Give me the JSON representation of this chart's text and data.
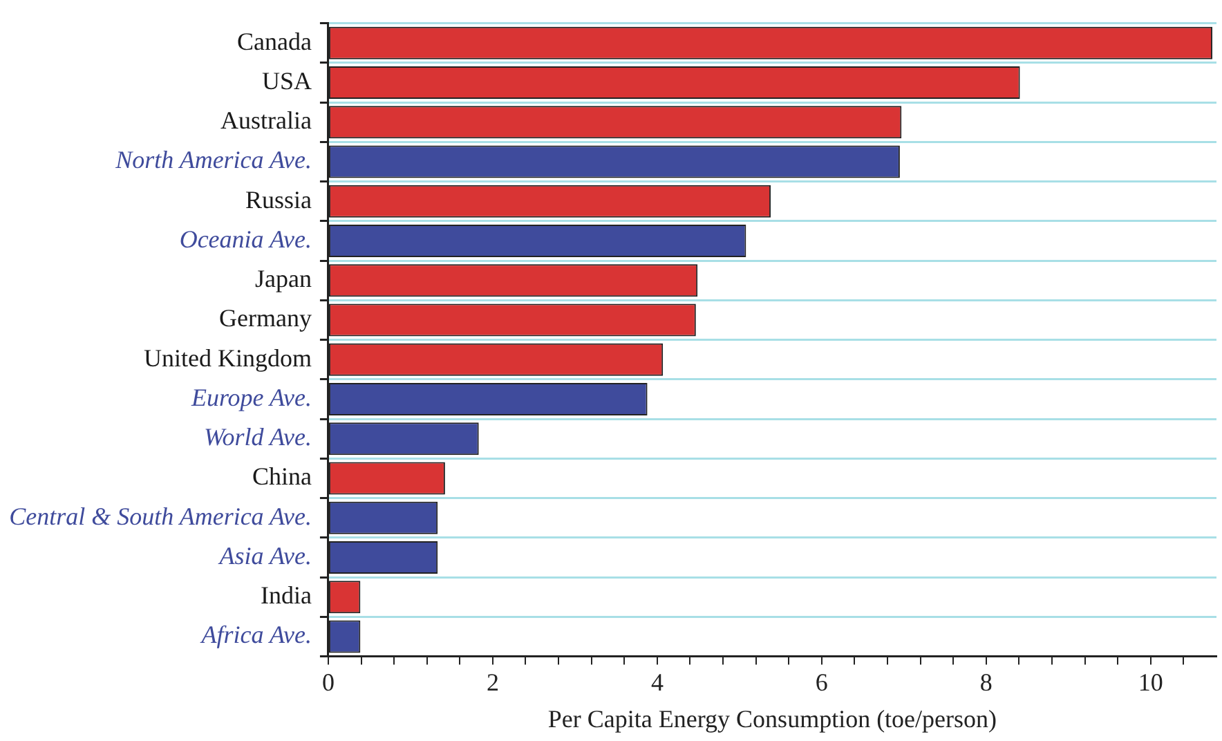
{
  "chart_data": {
    "type": "bar",
    "orientation": "horizontal",
    "xlabel": "Per Capita Energy Consumption (toe/person)",
    "categories": [
      "Canada",
      "USA",
      "Australia",
      "North America Ave.",
      "Russia",
      "Oceania Ave.",
      "Japan",
      "Germany",
      "United Kingdom",
      "Europe Ave.",
      "World Ave.",
      "China",
      "Central & South America Ave.",
      "Asia Ave.",
      "India",
      "Africa Ave."
    ],
    "values": [
      10.75,
      8.41,
      6.97,
      6.95,
      5.38,
      5.08,
      4.49,
      4.47,
      4.07,
      3.88,
      1.83,
      1.42,
      1.33,
      1.33,
      0.39,
      0.39
    ],
    "colors": [
      "#d93434",
      "#d93434",
      "#d93434",
      "#3f4b9c",
      "#d93434",
      "#3f4b9c",
      "#d93434",
      "#d93434",
      "#d93434",
      "#3f4b9c",
      "#3f4b9c",
      "#d93434",
      "#3f4b9c",
      "#3f4b9c",
      "#d93434",
      "#3f4b9c"
    ],
    "xlim": [
      0,
      10.8
    ],
    "xticks": [
      0,
      {
        "value": 0.4,
        "label": null
      },
      {
        "value": 0.8,
        "label": null
      },
      {
        "value": 1.2,
        "label": null
      },
      {
        "value": 1.6,
        "label": null
      },
      2,
      {
        "value": 2.4,
        "label": null
      },
      {
        "value": 2.8,
        "label": null
      },
      {
        "value": 3.2,
        "label": null
      },
      {
        "value": 3.6,
        "label": null
      },
      4,
      {
        "value": 4.4,
        "label": null
      },
      {
        "value": 4.8,
        "label": null
      },
      {
        "value": 5.2,
        "label": null
      },
      {
        "value": 5.6,
        "label": null
      },
      6,
      {
        "value": 6.4,
        "label": null
      },
      {
        "value": 6.8,
        "label": null
      },
      {
        "value": 7.2,
        "label": null
      },
      {
        "value": 7.6,
        "label": null
      },
      8,
      {
        "value": 8.4,
        "label": null
      },
      {
        "value": 8.8,
        "label": null
      },
      {
        "value": 9.2,
        "label": null
      },
      {
        "value": 9.6,
        "label": null
      },
      10,
      {
        "value": 10.4,
        "label": null
      }
    ],
    "grid": "y",
    "legend": false
  }
}
